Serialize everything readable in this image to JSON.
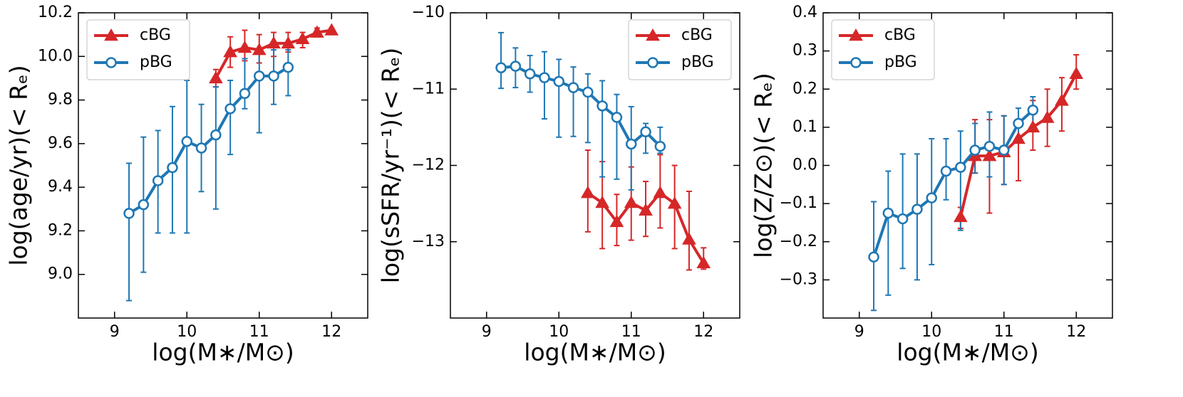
{
  "chart_data": [
    {
      "type": "line",
      "xlabel": "log(M∗/M⊙)",
      "ylabel": "log(age/yr)(< Rₑ)",
      "xlim": [
        8.5,
        12.5
      ],
      "xticks": [
        9,
        10,
        11,
        12
      ],
      "ylim": [
        8.8,
        10.2
      ],
      "yticks": [
        {
          "value": 9,
          "label": "9.0"
        },
        9.2,
        9.4,
        9.6,
        9.8,
        {
          "value": 10,
          "label": "10.0"
        },
        10.2
      ],
      "legend": "upper left",
      "series": [
        {
          "name": "cBG",
          "color": "#d62728",
          "marker": "triangle",
          "x": [
            10.4,
            10.6,
            10.8,
            11.0,
            11.2,
            11.4,
            11.6,
            11.8,
            12.0
          ],
          "values": [
            9.9,
            10.02,
            10.04,
            10.03,
            10.06,
            10.06,
            10.08,
            10.11,
            10.12
          ],
          "lower": [
            9.86,
            9.95,
            9.98,
            9.97,
            10.0,
            10.02,
            10.04,
            10.09,
            10.11
          ],
          "upper": [
            9.94,
            10.09,
            10.12,
            10.1,
            10.11,
            10.11,
            10.11,
            10.13,
            10.13
          ]
        },
        {
          "name": "pBG",
          "color": "#1f77b4",
          "marker": "circle",
          "x": [
            9.2,
            9.4,
            9.6,
            9.8,
            10.0,
            10.2,
            10.4,
            10.6,
            10.8,
            11.0,
            11.2,
            11.4
          ],
          "values": [
            9.28,
            9.32,
            9.43,
            9.49,
            9.61,
            9.58,
            9.64,
            9.76,
            9.83,
            9.91,
            9.91,
            9.95
          ],
          "lower": [
            8.88,
            9.01,
            9.19,
            9.19,
            9.19,
            9.38,
            9.3,
            9.55,
            9.76,
            9.65,
            9.78,
            9.82
          ],
          "upper": [
            9.51,
            9.63,
            9.66,
            9.77,
            9.89,
            9.78,
            9.86,
            9.89,
            9.99,
            10.03,
            10.03,
            10.03
          ]
        }
      ]
    },
    {
      "type": "line",
      "xlabel": "log(M∗/M⊙)",
      "ylabel": "log(sSFR/yr⁻¹)(< Rₑ)",
      "xlim": [
        8.5,
        12.5
      ],
      "xticks": [
        9,
        10,
        11,
        12
      ],
      "ylim": [
        -14,
        -10
      ],
      "yticks": [
        {
          "value": -13,
          "label": "−13"
        },
        {
          "value": -12,
          "label": "−12"
        },
        {
          "value": -11,
          "label": "−11"
        },
        {
          "value": -10,
          "label": "−10"
        }
      ],
      "legend": "upper right",
      "series": [
        {
          "name": "cBG",
          "color": "#d62728",
          "marker": "triangle",
          "x": [
            10.4,
            10.6,
            10.8,
            11.0,
            11.2,
            11.4,
            11.6,
            11.8,
            12.0
          ],
          "values": [
            -12.36,
            -12.49,
            -12.74,
            -12.49,
            -12.59,
            -12.36,
            -12.5,
            -12.97,
            -13.28
          ],
          "lower": [
            -12.87,
            -13.09,
            -13.05,
            -12.98,
            -12.93,
            -12.82,
            -13.09,
            -13.37,
            -13.36
          ],
          "upper": [
            -11.8,
            -11.95,
            -12.38,
            -12.02,
            -12.21,
            -11.86,
            -12.0,
            -12.34,
            -13.08
          ]
        },
        {
          "name": "pBG",
          "color": "#1f77b4",
          "marker": "circle",
          "x": [
            9.2,
            9.4,
            9.6,
            9.8,
            10.0,
            10.2,
            10.4,
            10.6,
            10.8,
            11.0,
            11.2,
            11.4
          ],
          "values": [
            -10.72,
            -10.7,
            -10.8,
            -10.85,
            -10.9,
            -10.98,
            -11.04,
            -11.22,
            -11.37,
            -11.72,
            -11.56,
            -11.75
          ],
          "lower": [
            -10.99,
            -10.98,
            -11.04,
            -11.39,
            -11.63,
            -11.62,
            -11.7,
            -12.15,
            -12.18,
            -12.32,
            -11.84,
            -11.84
          ],
          "upper": [
            -10.26,
            -10.46,
            -10.56,
            -10.51,
            -10.61,
            -10.71,
            -10.8,
            -10.89,
            -11.07,
            -11.23,
            -11.45,
            -11.5
          ]
        }
      ]
    },
    {
      "type": "line",
      "xlabel": "log(M∗/M⊙)",
      "ylabel": "log(Z/Z⊙)(< Rₑ)",
      "xlim": [
        8.5,
        12.5
      ],
      "xticks": [
        9,
        10,
        11,
        12
      ],
      "ylim": [
        -0.4,
        0.4
      ],
      "yticks": [
        {
          "value": -0.3,
          "label": "−0.3"
        },
        {
          "value": -0.2,
          "label": "−0.2"
        },
        {
          "value": -0.1,
          "label": "−0.1"
        },
        {
          "value": 0,
          "label": "0.0"
        },
        0.1,
        0.2,
        0.3,
        0.4
      ],
      "legend": "upper left",
      "series": [
        {
          "name": "cBG",
          "color": "#d62728",
          "marker": "triangle",
          "x": [
            10.4,
            10.6,
            10.8,
            11.0,
            11.2,
            11.4,
            11.6,
            11.8,
            12.0
          ],
          "values": [
            -0.135,
            0.025,
            0.025,
            0.035,
            0.07,
            0.1,
            0.125,
            0.17,
            0.24
          ],
          "lower": [
            -0.165,
            -0.02,
            -0.125,
            -0.05,
            -0.04,
            0.04,
            0.05,
            0.09,
            0.2
          ],
          "upper": [
            -0.11,
            0.12,
            0.12,
            0.13,
            0.1,
            0.17,
            0.2,
            0.23,
            0.29
          ]
        },
        {
          "name": "pBG",
          "color": "#1f77b4",
          "marker": "circle",
          "x": [
            9.2,
            9.4,
            9.6,
            9.8,
            10.0,
            10.2,
            10.4,
            10.6,
            10.8,
            11.0,
            11.2,
            11.4
          ],
          "values": [
            -0.24,
            -0.125,
            -0.14,
            -0.115,
            -0.085,
            -0.015,
            -0.005,
            0.04,
            0.05,
            0.04,
            0.11,
            0.145
          ],
          "lower": [
            -0.38,
            -0.34,
            -0.27,
            -0.3,
            -0.26,
            -0.09,
            -0.17,
            -0.02,
            -0.03,
            -0.05,
            0.06,
            0.1
          ],
          "upper": [
            -0.095,
            -0.015,
            0.03,
            0.03,
            0.07,
            0.07,
            0.09,
            0.11,
            0.14,
            0.13,
            0.15,
            0.18
          ]
        }
      ]
    }
  ]
}
